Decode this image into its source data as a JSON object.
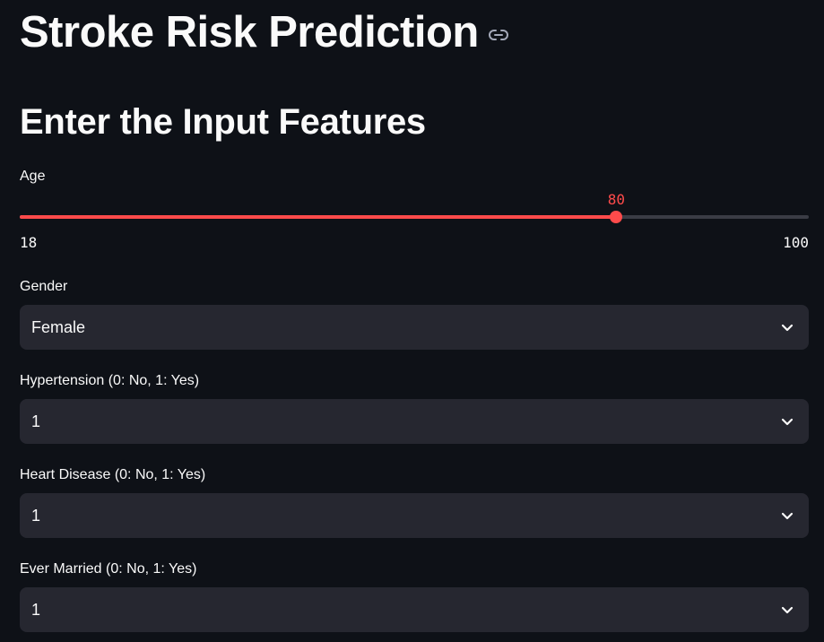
{
  "header": {
    "title": "Stroke Risk Prediction",
    "link_icon": "link-icon"
  },
  "form": {
    "heading": "Enter the Input Features",
    "age": {
      "label": "Age",
      "value": "80",
      "min": "18",
      "max": "100",
      "accent_color": "#ff4b4b"
    },
    "gender": {
      "label": "Gender",
      "value": "Female"
    },
    "hypertension": {
      "label": "Hypertension (0: No, 1: Yes)",
      "value": "1"
    },
    "heart_disease": {
      "label": "Heart Disease (0: No, 1: Yes)",
      "value": "1"
    },
    "ever_married": {
      "label": "Ever Married (0: No, 1: Yes)",
      "value": "1"
    },
    "dropdown_icon": "chevron-down-icon"
  },
  "theme": {
    "background": "#0e1117",
    "input_background": "#262730",
    "text": "#fafafa"
  }
}
